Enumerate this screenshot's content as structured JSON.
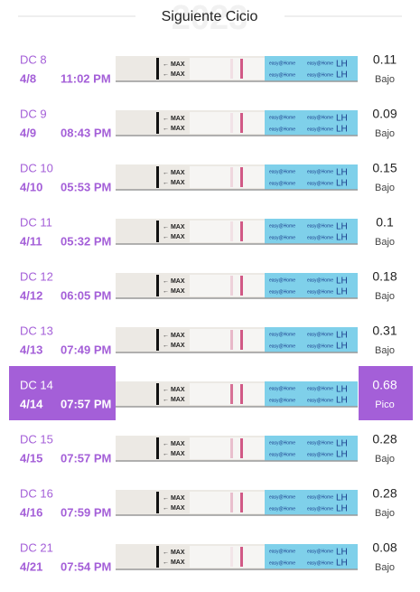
{
  "header": {
    "title": "Siguiente Cicio",
    "watermark": "2023"
  },
  "strip_labels": {
    "max": "← MAX",
    "brand": "easy@Home",
    "lh": "LH"
  },
  "selected_row": 6,
  "rows": [
    {
      "dc": "DC 8",
      "date": "4/8",
      "time": "11:02 PM",
      "value": 0.11,
      "level": "Bajo"
    },
    {
      "dc": "DC 9",
      "date": "4/9",
      "time": "08:43 PM",
      "value": 0.09,
      "level": "Bajo"
    },
    {
      "dc": "DC 10",
      "date": "4/10",
      "time": "05:53 PM",
      "value": 0.15,
      "level": "Bajo"
    },
    {
      "dc": "DC 11",
      "date": "4/11",
      "time": "05:32 PM",
      "value": 0.1,
      "level": "Bajo"
    },
    {
      "dc": "DC 12",
      "date": "4/12",
      "time": "06:05 PM",
      "value": 0.18,
      "level": "Bajo"
    },
    {
      "dc": "DC 13",
      "date": "4/13",
      "time": "07:49 PM",
      "value": 0.31,
      "level": "Bajo"
    },
    {
      "dc": "DC 14",
      "date": "4/14",
      "time": "07:57 PM",
      "value": 0.68,
      "level": "Pico"
    },
    {
      "dc": "DC 15",
      "date": "4/15",
      "time": "07:57 PM",
      "value": 0.28,
      "level": "Bajo"
    },
    {
      "dc": "DC 16",
      "date": "4/16",
      "time": "07:59 PM",
      "value": 0.28,
      "level": "Bajo"
    },
    {
      "dc": "DC 21",
      "date": "4/21",
      "time": "07:54 PM",
      "value": 0.08,
      "level": "Bajo"
    }
  ]
}
